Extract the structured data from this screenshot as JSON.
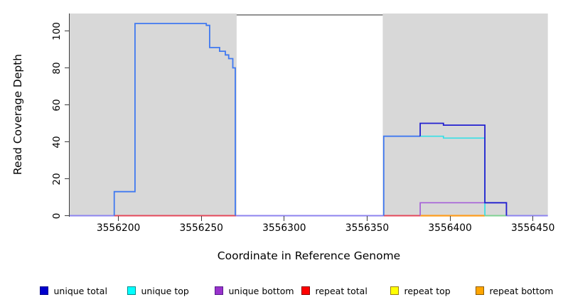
{
  "chart_data": {
    "type": "line",
    "subtype": "step-coverage",
    "title": "",
    "xlabel": "Coordinate in Reference Genome",
    "ylabel": "Read Coverage Depth",
    "xlim": [
      3556170.6,
      3556459.0
    ],
    "ylim": [
      0,
      109.6
    ],
    "grid": false,
    "legend_position": "bottom",
    "x_ticks": [
      {
        "value": 3556200,
        "label": "3556200"
      },
      {
        "value": 3556250,
        "label": "3556250"
      },
      {
        "value": 3556300,
        "label": "3556300"
      },
      {
        "value": 3556350,
        "label": "3556350"
      },
      {
        "value": 3556400,
        "label": "3556400"
      },
      {
        "value": 3556450,
        "label": "3556450"
      }
    ],
    "y_ticks": [
      {
        "value": 0,
        "label": "0"
      },
      {
        "value": 20,
        "label": "20"
      },
      {
        "value": 40,
        "label": "40"
      },
      {
        "value": 60,
        "label": "60"
      },
      {
        "value": 80,
        "label": "80"
      },
      {
        "value": 100,
        "label": "100"
      }
    ],
    "shaded_regions": [
      {
        "name": "repeat-region-left",
        "x0": 3556170.6,
        "x1": 3556271.3,
        "color": "#d8d8d8"
      },
      {
        "name": "repeat-region-right",
        "x0": 3556359.4,
        "x1": 3556459.0,
        "color": "#d8d8d8"
      }
    ],
    "gap_top_border": {
      "x0": 3556271.3,
      "x1": 3556359.4,
      "color": "#6f6f6f"
    },
    "series": [
      {
        "name": "unique total",
        "steps": [
          [
            3556170.6,
            3556197.5,
            0
          ],
          [
            3556197.5,
            3556210,
            13
          ],
          [
            3556210,
            3556253,
            104
          ],
          [
            3556253,
            3556255,
            103
          ],
          [
            3556255,
            3556261,
            91
          ],
          [
            3556261,
            3556264.5,
            89
          ],
          [
            3556264.5,
            3556266.5,
            87
          ],
          [
            3556266.5,
            3556269,
            85
          ],
          [
            3556269,
            3556270.5,
            80
          ],
          [
            3556270.5,
            3556360,
            0
          ],
          [
            3556360,
            3556382,
            43
          ],
          [
            3556382,
            3556396,
            50
          ],
          [
            3556396,
            3556421,
            49
          ],
          [
            3556421,
            3556434,
            7
          ],
          [
            3556434,
            3556459,
            0
          ]
        ]
      },
      {
        "name": "unique top",
        "steps": [
          [
            3556360,
            3556396,
            43
          ],
          [
            3556396,
            3556421,
            42
          ],
          [
            3556421,
            3556459,
            0
          ]
        ]
      },
      {
        "name": "unique bottom",
        "steps": [
          [
            3556382,
            3556434,
            7
          ]
        ]
      },
      {
        "name": "repeat total",
        "steps": [
          [
            3556197.5,
            3556271,
            0
          ],
          [
            3556360,
            3556382,
            0
          ]
        ]
      },
      {
        "name": "repeat top",
        "steps": [
          [
            3556421,
            3556434,
            0
          ]
        ]
      },
      {
        "name": "repeat bottom",
        "steps": [
          [
            3556382,
            3556421,
            0
          ]
        ]
      }
    ],
    "draw_paths": [
      {
        "name": "zero-line-left",
        "color": "#8d83ef",
        "width": 2,
        "points": [
          [
            3556170.6,
            0
          ],
          [
            3556197.5,
            0
          ]
        ]
      },
      {
        "name": "zero-line-middle",
        "color": "#8d83ef",
        "width": 2,
        "points": [
          [
            3556271,
            0
          ],
          [
            3556360,
            0
          ]
        ]
      },
      {
        "name": "zero-line-right",
        "color": "#8d83ef",
        "width": 2,
        "points": [
          [
            3556434,
            0
          ],
          [
            3556459,
            0
          ]
        ]
      },
      {
        "name": "repeat-total-line-left",
        "color": "#e4475a",
        "width": 2,
        "points": [
          [
            3556197.5,
            0
          ],
          [
            3556271,
            0
          ]
        ]
      },
      {
        "name": "repeat-total-line-right",
        "color": "#e4475a",
        "width": 2,
        "points": [
          [
            3556360,
            0
          ],
          [
            3556382,
            0
          ]
        ]
      },
      {
        "name": "repeat-bottom-line",
        "color": "#ff9d1e",
        "width": 2.2,
        "points": [
          [
            3556382,
            0
          ],
          [
            3556421,
            0
          ]
        ]
      },
      {
        "name": "repeat-top-line",
        "color": "#7fd292",
        "width": 2,
        "points": [
          [
            3556421,
            0
          ],
          [
            3556434,
            0
          ]
        ]
      },
      {
        "name": "unique-bottom-line",
        "color": "#a55fd8",
        "width": 1.7,
        "points": [
          [
            3556382,
            0
          ],
          [
            3556382,
            7
          ],
          [
            3556434,
            7
          ],
          [
            3556434,
            0
          ]
        ]
      },
      {
        "name": "unique-top-line",
        "color": "#35dfe6",
        "width": 1.7,
        "points": [
          [
            3556382,
            43
          ],
          [
            3556396,
            43
          ],
          [
            3556396,
            42
          ],
          [
            3556421,
            42
          ],
          [
            3556421,
            0
          ]
        ]
      },
      {
        "name": "unique-total-line-left",
        "color": "#4079f0",
        "width": 1.8,
        "points": [
          [
            3556197.5,
            0
          ],
          [
            3556197.5,
            13
          ],
          [
            3556210,
            13
          ],
          [
            3556210,
            104
          ],
          [
            3556253,
            104
          ],
          [
            3556253,
            103
          ],
          [
            3556255,
            103
          ],
          [
            3556255,
            91
          ],
          [
            3556261,
            91
          ],
          [
            3556261,
            89
          ],
          [
            3556264.5,
            89
          ],
          [
            3556264.5,
            87
          ],
          [
            3556266.5,
            87
          ],
          [
            3556266.5,
            85
          ],
          [
            3556269,
            85
          ],
          [
            3556269,
            80
          ],
          [
            3556270.5,
            80
          ],
          [
            3556270.5,
            0
          ]
        ]
      },
      {
        "name": "unique-total-line-right-low",
        "color": "#4079f0",
        "width": 1.8,
        "points": [
          [
            3556360,
            0
          ],
          [
            3556360,
            43
          ],
          [
            3556382,
            43
          ]
        ]
      },
      {
        "name": "unique-total-line-right-high",
        "color": "#2220cf",
        "width": 1.8,
        "points": [
          [
            3556382,
            43
          ],
          [
            3556382,
            50
          ],
          [
            3556396,
            50
          ],
          [
            3556396,
            49
          ],
          [
            3556421,
            49
          ],
          [
            3556421,
            7
          ],
          [
            3556434,
            7
          ],
          [
            3556434,
            0
          ]
        ]
      }
    ],
    "legend": {
      "items": [
        {
          "label": "unique total",
          "fill": "#0000cd",
          "border": "#00008b"
        },
        {
          "label": "unique top",
          "fill": "#00ffff",
          "border": "#008b8b"
        },
        {
          "label": "unique bottom",
          "fill": "#9932cc",
          "border": "#551a8b"
        },
        {
          "label": "repeat total",
          "fill": "#ff0000",
          "border": "#8b0000"
        },
        {
          "label": "repeat top",
          "fill": "#ffff00",
          "border": "#9a7d0a"
        },
        {
          "label": "repeat bottom",
          "fill": "#ffa500",
          "border": "#8b5a00"
        }
      ]
    }
  }
}
